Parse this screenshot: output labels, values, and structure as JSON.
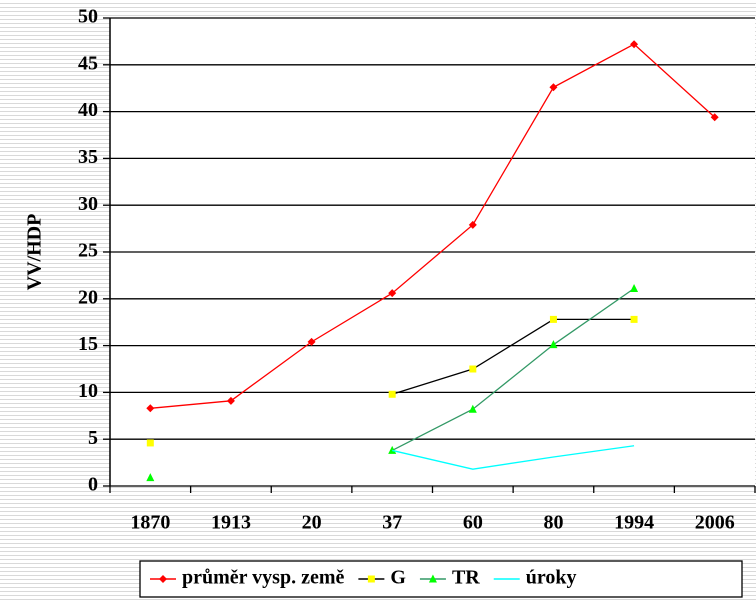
{
  "chart_data": {
    "type": "line",
    "y_label": "VV/HDP",
    "categories": [
      "1870",
      "1913",
      "20",
      "37",
      "60",
      "80",
      "1994",
      "2006"
    ],
    "series": [
      {
        "name": "průměr vysp. země",
        "color": "#ff0000",
        "marker": "diamond",
        "marker_color": "#ff0000",
        "values": [
          8.3,
          9.1,
          15.4,
          20.6,
          27.9,
          42.6,
          47.2,
          39.4
        ]
      },
      {
        "name": "G",
        "color": "#000000",
        "marker": "square",
        "marker_color": "#ffff00",
        "values": [
          4.6,
          null,
          null,
          9.8,
          12.5,
          17.8,
          17.8,
          null
        ]
      },
      {
        "name": "TR",
        "color": "#339966",
        "marker": "triangle",
        "marker_color": "#00ff00",
        "values": [
          0.9,
          null,
          null,
          3.8,
          8.2,
          15.1,
          21.1,
          null
        ]
      },
      {
        "name": "úroky",
        "color": "#00ffff",
        "values": [
          null,
          null,
          null,
          3.8,
          1.8,
          3.1,
          4.3,
          null
        ]
      }
    ],
    "ylim": [
      0,
      50
    ],
    "yticks": [
      0,
      5,
      10,
      15,
      20,
      25,
      30,
      35,
      40,
      45,
      50
    ],
    "grid": true,
    "legend": "bottom"
  }
}
